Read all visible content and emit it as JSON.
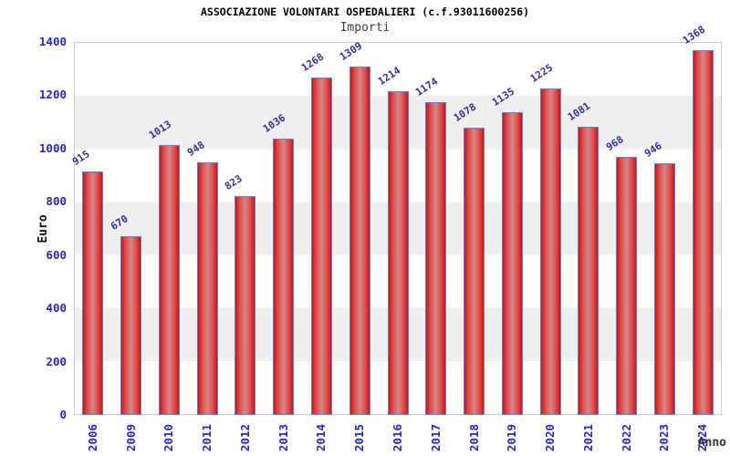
{
  "header": {
    "title": "ASSOCIAZIONE VOLONTARI OSPEDALIERI (c.f.93011600256)",
    "subtitle": "Importi"
  },
  "chart_data": {
    "type": "bar",
    "title": "ASSOCIAZIONE VOLONTARI OSPEDALIERI (c.f.93011600256)",
    "subtitle": "Importi",
    "xlabel": "Anno",
    "ylabel": "Euro",
    "categories": [
      "2006",
      "2009",
      "2010",
      "2011",
      "2012",
      "2013",
      "2014",
      "2015",
      "2016",
      "2017",
      "2018",
      "2019",
      "2020",
      "2021",
      "2022",
      "2023",
      "2024"
    ],
    "values": [
      915,
      670,
      1013,
      948,
      823,
      1036,
      1268,
      1309,
      1214,
      1174,
      1078,
      1135,
      1225,
      1081,
      968,
      946,
      1368
    ],
    "ylim": [
      0,
      1400
    ],
    "yticks": [
      0,
      200,
      400,
      600,
      800,
      1000,
      1200,
      1400
    ],
    "grid": "horizontal-bands",
    "legend": "none",
    "colors": {
      "bar_edge": "#5588dd",
      "bar_fill_dark": "#c21616",
      "bar_fill_mid": "#e73e3e",
      "bar_fill_center": "#cf8a8a",
      "tick_label": "#2424d2",
      "value_label": "#32329c",
      "band_gray": "#efefef",
      "plot_border": "#c9c9c9",
      "title": "#000000",
      "subtitle": "#3c3c3c"
    }
  }
}
